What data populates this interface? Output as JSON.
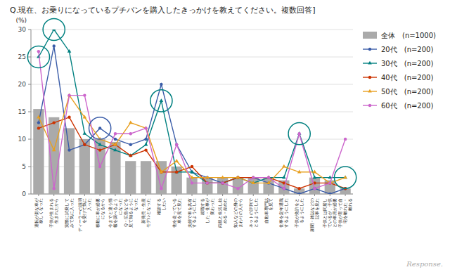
{
  "chart_data": {
    "type": "bar",
    "title": "Q.現在、お乗りになっているプチバンを購入したきっかけを教えてください。複数回答]",
    "ylabel": "(%)",
    "ylim": [
      0,
      30
    ],
    "yticks": [
      0,
      5,
      10,
      15,
      20,
      25,
      30
    ],
    "grid": true,
    "legend": "right",
    "categories": [
      "運転が楽な車が\n欲しくなった",
      "子供が生まれる\n生まれたから",
      "実際に試乗して\nみて気に入った",
      "ディーラーの説明\nを受けて気に\n入った",
      "移動に車が必要\nになるから",
      "今までと違う情\n報を調べるよう\nになった",
      "Q・広告などを\n見て知るように\nなった",
      "新発売・生産\nモデルとなった",
      "相談する\nしたい",
      "他を走っている\n車を見て見た",
      "夫婦で車を共有\nするようにした",
      "就職する\nした・仕事が\n変わった",
      "両親と生活し始\nめる・始めた",
      "知人などの身の\nまわりの人から",
      "ネットの評判で\nとるようにした",
      "自動車専門誌\nを見て",
      "仕事を定年退職\nするようにした",
      "子供が免許をと\nるようにした",
      "新聞・雑誌などの\n記事を見た",
      "子供とは同居し\nているが、子供\nとの車用が必要",
      "子供が育って自\n宅を離れた・\n離れる"
    ],
    "series": [
      {
        "name": "全体　(n=1000)",
        "type": "bar",
        "color": "#aaaaaa",
        "values": [
          15.5,
          14,
          12,
          10,
          10,
          9.5,
          6,
          6,
          6,
          5,
          3,
          3,
          3,
          3,
          3,
          3,
          2.5,
          1,
          3,
          2.5,
          1
        ]
      },
      {
        "name": "20代　(n=200)",
        "type": "line",
        "color": "#3a5ca8",
        "marker": "circle",
        "values": [
          13,
          27,
          8,
          9,
          12,
          10,
          9,
          10,
          20,
          9,
          4,
          3,
          2,
          3,
          3,
          2,
          1,
          0,
          1,
          0,
          1
        ]
      },
      {
        "name": "30代　(n=200)",
        "type": "line",
        "color": "#008080",
        "marker": "triangle",
        "values": [
          25,
          30,
          26,
          11,
          9,
          8,
          7,
          9,
          17,
          4,
          4,
          2,
          2,
          3,
          2,
          3,
          3,
          11,
          3,
          3,
          3
        ]
      },
      {
        "name": "40代　(n=200)",
        "type": "line",
        "color": "#cc3300",
        "marker": "circle",
        "values": [
          12,
          13,
          14,
          9,
          8,
          9,
          7,
          8,
          4,
          4,
          5,
          2,
          2,
          3,
          3,
          3,
          2,
          1,
          2,
          2,
          1
        ]
      },
      {
        "name": "50代　(n=200)",
        "type": "line",
        "color": "#e8a020",
        "marker": "triangle",
        "values": [
          14,
          8,
          18,
          14,
          10,
          9,
          13,
          12,
          4,
          6,
          3,
          3,
          3,
          3,
          2,
          2,
          5,
          4,
          4,
          2,
          3
        ]
      },
      {
        "name": "60代　(n=200)",
        "type": "line",
        "color": "#cc66cc",
        "marker": "circle",
        "values": [
          26,
          1,
          18,
          18,
          5,
          11,
          11,
          12,
          1,
          9,
          2,
          2,
          2,
          1,
          3,
          3,
          1,
          11,
          1,
          2,
          10
        ]
      }
    ],
    "annotations": [
      {
        "text": "Response."
      },
      {
        "shape": "circle",
        "series": 2,
        "index": 0
      },
      {
        "shape": "circle",
        "series": 2,
        "index": 1
      },
      {
        "shape": "circle",
        "series": 1,
        "index": 4
      },
      {
        "shape": "circle",
        "series": 2,
        "index": 8
      },
      {
        "shape": "circle",
        "series": 2,
        "index": 17
      },
      {
        "shape": "circle",
        "series": 2,
        "index": 20
      }
    ]
  }
}
